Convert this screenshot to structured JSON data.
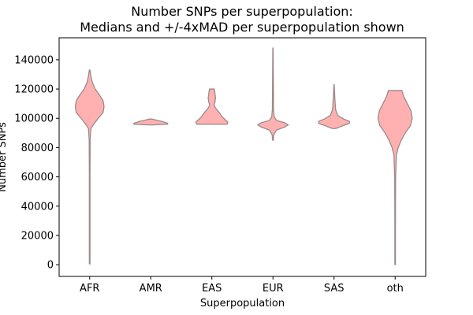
{
  "chart_data": {
    "type": "violin",
    "title": [
      "Number SNPs per superpopulation:",
      "Medians and +/-4xMAD per superpopulation shown"
    ],
    "xlabel": "Superpopulation",
    "ylabel": "Number SNPs",
    "ylim": [
      -8000,
      155000
    ],
    "yticks": [
      0,
      20000,
      40000,
      60000,
      80000,
      100000,
      120000,
      140000
    ],
    "grid": false,
    "colors": {
      "fill": "#ffb1b1",
      "edge": "#9b8a8a"
    },
    "categories": [
      "AFR",
      "AMR",
      "EAS",
      "EUR",
      "SAS",
      "oth"
    ],
    "violins": [
      {
        "name": "AFR",
        "min": 500,
        "max": 133000,
        "profile": [
          [
            500,
            0.01
          ],
          [
            60000,
            0.01
          ],
          [
            85000,
            0.015
          ],
          [
            93000,
            0.04
          ],
          [
            96000,
            0.13
          ],
          [
            100000,
            0.28
          ],
          [
            104000,
            0.44
          ],
          [
            108000,
            0.47
          ],
          [
            112000,
            0.44
          ],
          [
            116000,
            0.32
          ],
          [
            120000,
            0.18
          ],
          [
            125000,
            0.08
          ],
          [
            129000,
            0.04
          ],
          [
            133000,
            0.01
          ]
        ]
      },
      {
        "name": "AMR",
        "min": 95500,
        "max": 99500,
        "profile": [
          [
            95500,
            0.08
          ],
          [
            96000,
            0.55
          ],
          [
            96500,
            0.56
          ],
          [
            97000,
            0.5
          ],
          [
            98000,
            0.35
          ],
          [
            99000,
            0.14
          ],
          [
            99500,
            0.04
          ]
        ]
      },
      {
        "name": "EAS",
        "min": 96000,
        "max": 120000,
        "profile": [
          [
            96000,
            0.5
          ],
          [
            97500,
            0.52
          ],
          [
            99000,
            0.44
          ],
          [
            101000,
            0.34
          ],
          [
            104000,
            0.24
          ],
          [
            107000,
            0.12
          ],
          [
            109000,
            0.07
          ],
          [
            111000,
            0.1
          ],
          [
            114000,
            0.12
          ],
          [
            117000,
            0.1
          ],
          [
            120000,
            0.08
          ]
        ]
      },
      {
        "name": "EUR",
        "min": 85000,
        "max": 148000,
        "profile": [
          [
            85000,
            0.01
          ],
          [
            89000,
            0.03
          ],
          [
            92000,
            0.12
          ],
          [
            94000,
            0.38
          ],
          [
            95500,
            0.5
          ],
          [
            97000,
            0.38
          ],
          [
            98500,
            0.12
          ],
          [
            101000,
            0.04
          ],
          [
            106000,
            0.02
          ],
          [
            120000,
            0.015
          ],
          [
            148000,
            0.005
          ]
        ]
      },
      {
        "name": "SAS",
        "min": 93000,
        "max": 123000,
        "profile": [
          [
            93000,
            0.05
          ],
          [
            95000,
            0.3
          ],
          [
            96500,
            0.5
          ],
          [
            98000,
            0.5
          ],
          [
            99500,
            0.32
          ],
          [
            102000,
            0.12
          ],
          [
            106000,
            0.05
          ],
          [
            112000,
            0.03
          ],
          [
            118000,
            0.015
          ],
          [
            123000,
            0.005
          ]
        ]
      },
      {
        "name": "oth",
        "min": 0,
        "max": 119000,
        "profile": [
          [
            0,
            0.01
          ],
          [
            30000,
            0.01
          ],
          [
            60000,
            0.015
          ],
          [
            75000,
            0.04
          ],
          [
            80000,
            0.1
          ],
          [
            85000,
            0.2
          ],
          [
            90000,
            0.33
          ],
          [
            95000,
            0.5
          ],
          [
            100000,
            0.56
          ],
          [
            105000,
            0.52
          ],
          [
            110000,
            0.4
          ],
          [
            115000,
            0.28
          ],
          [
            119000,
            0.22
          ]
        ]
      }
    ]
  }
}
